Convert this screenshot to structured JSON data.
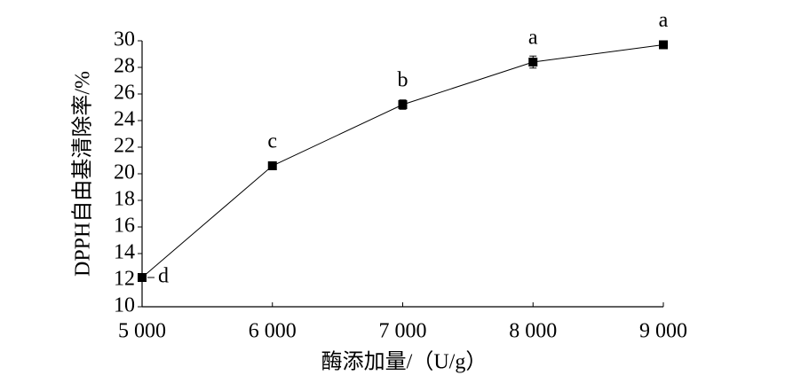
{
  "chart_data": {
    "type": "line",
    "x_label": "酶添加量/（U/g）",
    "y_label": "DPPH自由基清除率/%",
    "x": [
      5000,
      6000,
      7000,
      8000,
      9000
    ],
    "series": [
      {
        "color": "#000000",
        "values": [
          12.2,
          20.6,
          25.2,
          28.4,
          29.7
        ],
        "errors": [
          0.2,
          0.3,
          0.35,
          0.45,
          0.2
        ],
        "annotations": [
          "d",
          "c",
          "b",
          "a",
          "a"
        ]
      }
    ],
    "xlim": [
      5000,
      9000
    ],
    "xticks": [
      {
        "value": 5000,
        "label": "5 000"
      },
      {
        "value": 6000,
        "label": "6 000"
      },
      {
        "value": 7000,
        "label": "7 000"
      },
      {
        "value": 8000,
        "label": "8 000"
      },
      {
        "value": 9000,
        "label": "9 000"
      }
    ],
    "ylim": [
      10,
      30
    ],
    "yticks": [
      10,
      12,
      14,
      16,
      18,
      20,
      22,
      24,
      26,
      28,
      30
    ]
  }
}
